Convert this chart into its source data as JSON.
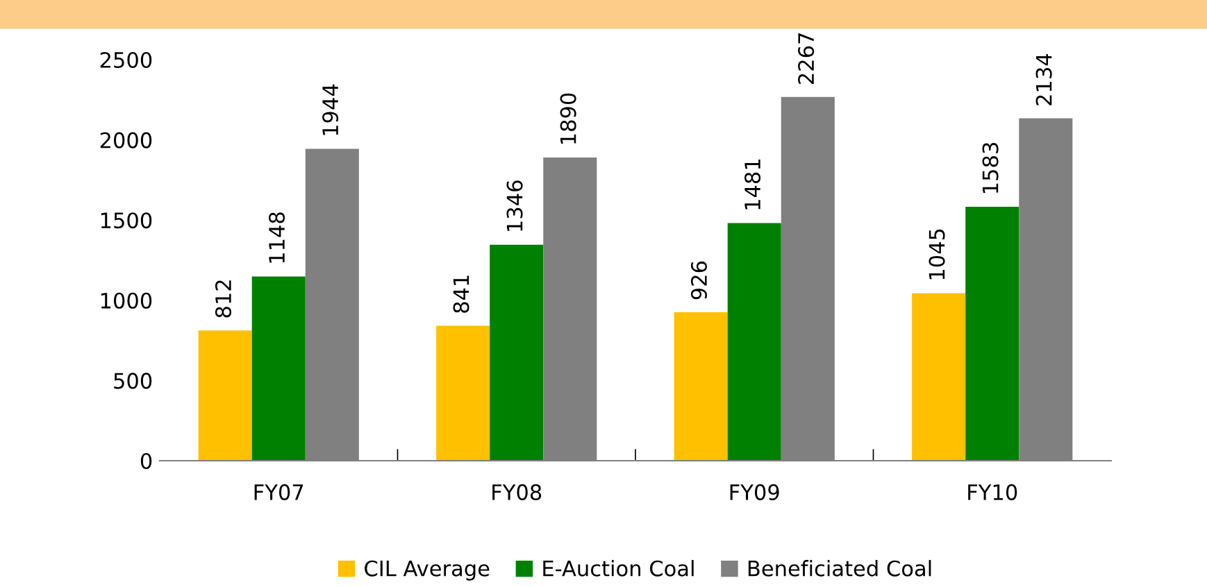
{
  "chart_data": {
    "type": "bar",
    "categories": [
      "FY07",
      "FY08",
      "FY09",
      "FY10"
    ],
    "series": [
      {
        "name": "CIL Average",
        "color": "#ffc000",
        "values": [
          812,
          841,
          926,
          1045
        ]
      },
      {
        "name": "E-Auction Coal",
        "color": "#008000",
        "values": [
          1148,
          1346,
          1481,
          1583
        ]
      },
      {
        "name": "Beneficiated Coal",
        "color": "#808080",
        "values": [
          1944,
          1890,
          2267,
          2134
        ]
      }
    ],
    "ylim": [
      0,
      2500
    ],
    "yticks": [
      0,
      500,
      1000,
      1500,
      2000,
      2500
    ],
    "grid": false,
    "legend": "bottom",
    "data_labels": true
  }
}
